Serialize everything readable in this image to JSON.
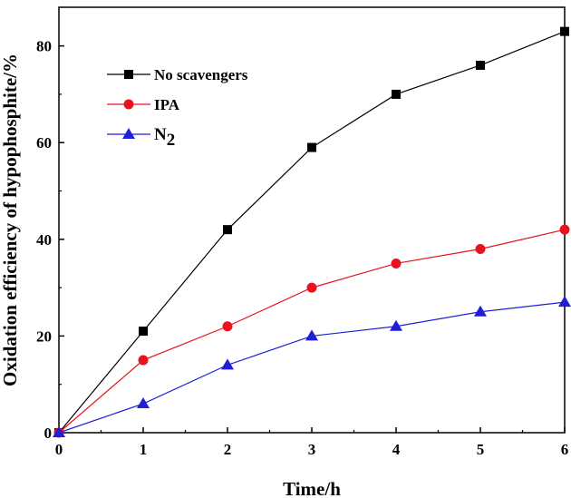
{
  "chart_data": {
    "type": "line",
    "x": [
      0,
      1,
      2,
      3,
      4,
      5,
      6
    ],
    "series": [
      {
        "name": "No scavengers",
        "values": [
          0,
          21,
          42,
          59,
          70,
          76,
          83
        ],
        "color": "#000000",
        "marker": "square"
      },
      {
        "name": "IPA",
        "values": [
          0,
          15,
          22,
          30,
          35,
          38,
          42
        ],
        "color": "#e8131f",
        "marker": "circle"
      },
      {
        "name": "N",
        "name_subscript": "2",
        "values": [
          0,
          6,
          14,
          20,
          22,
          25,
          27
        ],
        "color": "#1f1fd6",
        "marker": "triangle"
      }
    ],
    "xlabel": "Time/h",
    "ylabel": "Oxidation efficiency of hypophosphite/%",
    "xlim": [
      0,
      6
    ],
    "ylim": [
      0,
      88
    ],
    "xticks": [
      0,
      1,
      2,
      3,
      4,
      5,
      6
    ],
    "yticks": [
      0,
      20,
      40,
      60,
      80
    ],
    "grid": false,
    "legend_position": "top-left"
  }
}
